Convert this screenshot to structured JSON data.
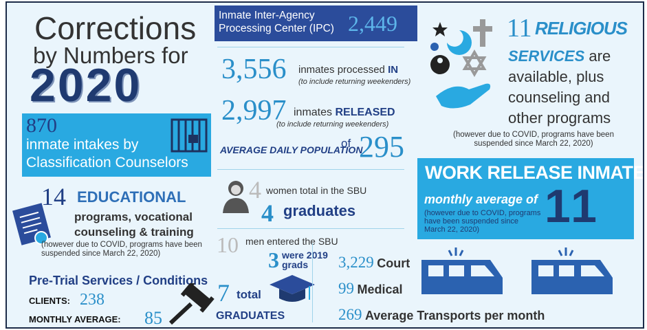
{
  "header": {
    "title_line1": "Corrections",
    "title_line2": "by Numbers for",
    "year": "2020"
  },
  "intakes": {
    "number": "870",
    "line1": "inmate intakes by",
    "line2": "Classification Counselors"
  },
  "education": {
    "number": "14",
    "heading": "EDUCATIONAL",
    "line1": "programs, vocational",
    "line2": "counseling & training",
    "note": "(however due to COVID, programs have been suspended since March 22, 2020)"
  },
  "pretrial": {
    "heading": "Pre-Trial Services / Conditions",
    "clients_label": "CLIENTS:",
    "clients": "238",
    "monthly_label": "MONTHLY AVERAGE:",
    "monthly": "85"
  },
  "ipc": {
    "label": "Inmate Inter-Agency Processing Center (IPC)",
    "number": "2,449"
  },
  "processed": {
    "number": "3,556",
    "text": "inmates processed",
    "emphasis": "IN",
    "note": "(to include returning weekenders)"
  },
  "released": {
    "number": "2,997",
    "text": "inmates",
    "emphasis": "RELEASED",
    "note": "(to include returning weekenders)"
  },
  "population": {
    "label": "AVERAGE DAILY POPULATION",
    "connector": "of",
    "number": "295"
  },
  "sbu_women": {
    "number": "4",
    "text": "women total in the SBU",
    "graduates_number": "4",
    "graduates_label": "graduates"
  },
  "sbu_men": {
    "number": "10",
    "text": "men entered the SBU",
    "prior_number": "3",
    "prior_label1": "were 2019",
    "prior_label2": "grads",
    "total_number": "7",
    "total_label": "total",
    "graduates_label": "GRADUATES"
  },
  "transports": [
    {
      "number": "3,229",
      "label": "Court"
    },
    {
      "number": "99",
      "label": "Medical"
    },
    {
      "number": "269",
      "label": "Average Transports per month"
    }
  ],
  "religious": {
    "number": "11",
    "heading1": "RELIGIOUS",
    "heading2": "SERVICES",
    "line0": "are",
    "line1": "available, plus",
    "line2": "counseling and",
    "line3": "other programs",
    "note": "(however due to COVID, programs have been suspended since March 22, 2020)"
  },
  "work_release": {
    "title": "WORK RELEASE INMATES",
    "subtitle": "monthly average of",
    "number": "11",
    "note": "(however due to COVID, programs have been suspended since March 22, 2020)"
  }
}
